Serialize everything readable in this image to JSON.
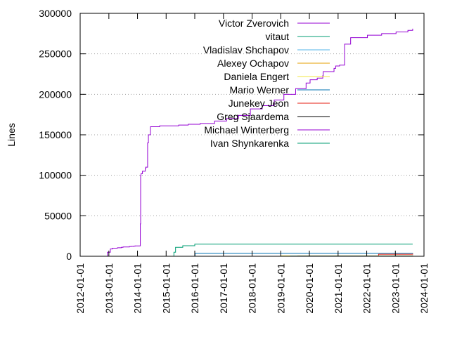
{
  "chart_data": {
    "type": "line",
    "title": "",
    "xlabel": "",
    "ylabel": "Lines",
    "ylim": [
      0,
      300000
    ],
    "xlim": [
      "2012-01-01",
      "2024-01-01"
    ],
    "x_ticks": [
      "2012-01-01",
      "2013-01-01",
      "2014-01-01",
      "2015-01-01",
      "2016-01-01",
      "2017-01-01",
      "2018-01-01",
      "2019-01-01",
      "2020-01-01",
      "2021-01-01",
      "2022-01-01",
      "2023-01-01",
      "2024-01-01"
    ],
    "y_ticks": [
      0,
      50000,
      100000,
      150000,
      200000,
      250000,
      300000
    ],
    "y_tick_labels": [
      "0",
      "50000",
      "100000",
      "150000",
      "200000",
      "250000",
      "300000"
    ],
    "grid": "horizontal dotted",
    "legend_position": "top-right",
    "series": [
      {
        "name": "Victor Zverovich",
        "color": "#9400d3",
        "x": [
          "2012-12-10",
          "2012-12-14",
          "2013-01-20",
          "2013-02-15",
          "2013-04-20",
          "2013-06-10",
          "2013-07-01",
          "2013-09-20",
          "2013-10-10",
          "2013-11-10",
          "2013-11-30",
          "2014-02-04",
          "2014-02-06",
          "2014-02-10",
          "2014-02-15",
          "2014-03-05",
          "2014-04-10",
          "2014-04-15",
          "2014-05-10",
          "2014-05-20",
          "2014-06-15",
          "2014-10-10",
          "2015-06-10",
          "2015-10-10",
          "2016-03-10",
          "2016-09-10",
          "2017-02-10",
          "2017-07-10",
          "2017-12-10",
          "2018-05-10",
          "2018-10-10",
          "2019-02-10",
          "2019-07-10",
          "2019-11-20",
          "2020-01-10",
          "2020-04-10",
          "2020-06-20",
          "2020-06-25",
          "2020-11-10",
          "2020-12-01",
          "2021-01-20",
          "2021-03-10",
          "2021-03-25",
          "2021-06-10",
          "2022-01-10",
          "2022-07-10",
          "2023-01-10",
          "2023-06-10",
          "2023-08-10"
        ],
        "values": [
          0,
          5000,
          9000,
          10000,
          10500,
          11000,
          11500,
          12000,
          12200,
          12500,
          12800,
          13000,
          40000,
          100000,
          102000,
          105000,
          108000,
          110000,
          140000,
          150000,
          160000,
          161000,
          162000,
          163000,
          164000,
          167000,
          170000,
          174000,
          182000,
          186000,
          193000,
          200000,
          207000,
          214000,
          218000,
          220000,
          223000,
          228000,
          232000,
          235000,
          236000,
          236000,
          262000,
          270000,
          273000,
          275000,
          277000,
          279000,
          281000
        ]
      },
      {
        "name": "vitaut",
        "color": "#009e73",
        "x": [
          "2015-03-20",
          "2015-04-10",
          "2015-05-01",
          "2015-08-01",
          "2016-01-01",
          "2023-08-10"
        ],
        "values": [
          0,
          5000,
          11000,
          13000,
          15000,
          15000
        ]
      },
      {
        "name": "Vladislav Shchapov",
        "color": "#56b4e9",
        "x": [
          "2019-05-01",
          "2023-08-10"
        ],
        "values": [
          300,
          500
        ]
      },
      {
        "name": "Alexey Ochapov",
        "color": "#e69f00",
        "x": [
          "2019-08-01",
          "2023-08-10"
        ],
        "values": [
          500,
          700
        ]
      },
      {
        "name": "Daniela Engert",
        "color": "#f0e442",
        "x": [
          "2019-01-01",
          "2023-08-10"
        ],
        "values": [
          500,
          1000
        ]
      },
      {
        "name": "Mario Werner",
        "color": "#0072b2",
        "x": [
          "2016-01-01",
          "2016-01-05",
          "2023-08-10"
        ],
        "values": [
          0,
          3600,
          3800
        ]
      },
      {
        "name": "Junekey Jeon",
        "color": "#e51e10",
        "x": [
          "2022-01-01",
          "2022-06-01",
          "2023-08-10"
        ],
        "values": [
          0,
          2500,
          3500
        ]
      },
      {
        "name": "Greg Sjaardema",
        "color": "#000000",
        "x": [
          "2017-06-01",
          "2023-08-10"
        ],
        "values": [
          0,
          1000
        ]
      },
      {
        "name": "Michael Winterberg",
        "color": "#9400d3",
        "x": [
          "2018-03-01",
          "2023-08-10"
        ],
        "values": [
          0,
          600
        ]
      },
      {
        "name": "Ivan Shynkarenka",
        "color": "#009e73",
        "x": [
          "2018-06-01",
          "2023-08-10"
        ],
        "values": [
          0,
          500
        ]
      }
    ]
  }
}
